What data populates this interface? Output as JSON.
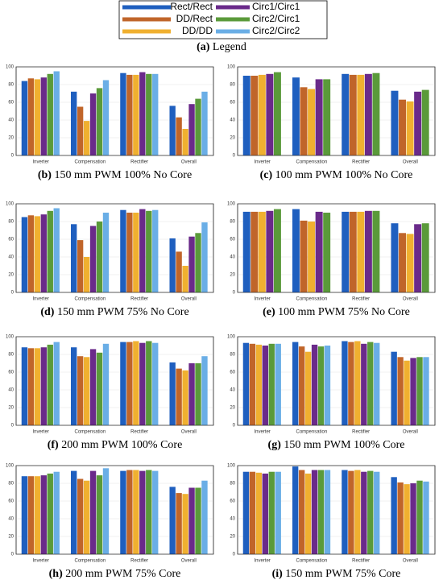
{
  "legend": {
    "caption": {
      "label": "(a)",
      "text": "Legend"
    },
    "series": [
      {
        "name": "Rect/Rect",
        "color": "#1f5fbf"
      },
      {
        "name": "DD/Rect",
        "color": "#c0652a"
      },
      {
        "name": "DD/DD",
        "color": "#f0b030"
      },
      {
        "name": "Circ1/Circ1",
        "color": "#6a2a8a"
      },
      {
        "name": "Circ2/Circ1",
        "color": "#5a9a3a"
      },
      {
        "name": "Circ2/Circ2",
        "color": "#6aaee6"
      }
    ]
  },
  "chart_data": [
    {
      "type": "bar",
      "label": "(b)",
      "title": "150 mm PWM 100% No Core",
      "categories": [
        "Inverter",
        "Compensation",
        "Rectifier",
        "Overall"
      ],
      "ylim": [
        0,
        100
      ],
      "yticks": [
        0,
        20,
        40,
        60,
        80,
        100
      ],
      "grid": true,
      "series": [
        {
          "values": [
            84,
            72,
            93,
            56
          ]
        },
        {
          "values": [
            87,
            55,
            91,
            43
          ]
        },
        {
          "values": [
            86,
            39,
            91,
            30
          ]
        },
        {
          "values": [
            88,
            70,
            94,
            58
          ]
        },
        {
          "values": [
            92,
            76,
            92,
            64
          ]
        },
        {
          "values": [
            95,
            85,
            92,
            72
          ]
        }
      ]
    },
    {
      "type": "bar",
      "label": "(c)",
      "title": "100 mm PWM 100% No Core",
      "categories": [
        "Inverter",
        "Compensation",
        "Rectifier",
        "Overall"
      ],
      "ylim": [
        0,
        100
      ],
      "yticks": [
        0,
        20,
        40,
        60,
        80,
        100
      ],
      "grid": true,
      "series": [
        {
          "values": [
            90,
            88,
            92,
            73
          ]
        },
        {
          "values": [
            90,
            77,
            91,
            63
          ]
        },
        {
          "values": [
            91,
            75,
            91,
            61
          ]
        },
        {
          "values": [
            92,
            86,
            92,
            72
          ]
        },
        {
          "values": [
            94,
            86,
            93,
            74
          ]
        }
      ]
    },
    {
      "type": "bar",
      "label": "(d)",
      "title": "150 mm PWM 75% No Core",
      "categories": [
        "Inverter",
        "Compensation",
        "Rectifier",
        "Overall"
      ],
      "ylim": [
        0,
        100
      ],
      "yticks": [
        0,
        20,
        40,
        60,
        80,
        100
      ],
      "grid": true,
      "series": [
        {
          "values": [
            85,
            77,
            93,
            61
          ]
        },
        {
          "values": [
            87,
            59,
            90,
            46
          ]
        },
        {
          "values": [
            86,
            40,
            90,
            30
          ]
        },
        {
          "values": [
            88,
            75,
            94,
            63
          ]
        },
        {
          "values": [
            92,
            80,
            92,
            67
          ]
        },
        {
          "values": [
            95,
            90,
            93,
            79
          ]
        }
      ]
    },
    {
      "type": "bar",
      "label": "(e)",
      "title": "100 mm PWM 75% No Core",
      "categories": [
        "Inverter",
        "Compensation",
        "Rectifier",
        "Overall"
      ],
      "ylim": [
        0,
        100
      ],
      "yticks": [
        0,
        20,
        40,
        60,
        80,
        100
      ],
      "grid": true,
      "series": [
        {
          "values": [
            91,
            94,
            91,
            78
          ]
        },
        {
          "values": [
            91,
            81,
            91,
            67
          ]
        },
        {
          "values": [
            91,
            80,
            91,
            66
          ]
        },
        {
          "values": [
            92,
            91,
            92,
            77
          ]
        },
        {
          "values": [
            94,
            90,
            92,
            78
          ]
        }
      ]
    },
    {
      "type": "bar",
      "label": "(f)",
      "title": "200 mm PWM 100% Core",
      "categories": [
        "Inverter",
        "Compensation",
        "Rectifier",
        "Overall"
      ],
      "ylim": [
        0,
        100
      ],
      "yticks": [
        0,
        20,
        40,
        60,
        80,
        100
      ],
      "grid": true,
      "series": [
        {
          "values": [
            88,
            88,
            94,
            71
          ]
        },
        {
          "values": [
            87,
            78,
            94,
            64
          ]
        },
        {
          "values": [
            87,
            77,
            95,
            62
          ]
        },
        {
          "values": [
            88,
            86,
            93,
            70
          ]
        },
        {
          "values": [
            91,
            82,
            95,
            70
          ]
        },
        {
          "values": [
            94,
            92,
            93,
            78
          ]
        }
      ]
    },
    {
      "type": "bar",
      "label": "(g)",
      "title": "150 mm PWM 100% Core",
      "categories": [
        "Inverter",
        "Compensation",
        "Rectifier",
        "Overall"
      ],
      "ylim": [
        0,
        100
      ],
      "yticks": [
        0,
        20,
        40,
        60,
        80,
        100
      ],
      "grid": true,
      "series": [
        {
          "values": [
            93,
            94,
            95,
            83
          ]
        },
        {
          "values": [
            92,
            89,
            94,
            77
          ]
        },
        {
          "values": [
            91,
            83,
            95,
            73
          ]
        },
        {
          "values": [
            90,
            91,
            92,
            76
          ]
        },
        {
          "values": [
            92,
            89,
            94,
            77
          ]
        },
        {
          "values": [
            92,
            90,
            93,
            77
          ]
        }
      ]
    },
    {
      "type": "bar",
      "label": "(h)",
      "title": "200 mm PWM 75% Core",
      "categories": [
        "Inverter",
        "Compensation",
        "Rectifier",
        "Overall"
      ],
      "ylim": [
        0,
        100
      ],
      "yticks": [
        0,
        20,
        40,
        60,
        80,
        100
      ],
      "grid": true,
      "series": [
        {
          "values": [
            88,
            94,
            94,
            76
          ]
        },
        {
          "values": [
            88,
            85,
            95,
            69
          ]
        },
        {
          "values": [
            88,
            83,
            95,
            68
          ]
        },
        {
          "values": [
            89,
            94,
            94,
            75
          ]
        },
        {
          "values": [
            91,
            89,
            95,
            75
          ]
        },
        {
          "values": [
            93,
            97,
            94,
            83
          ]
        }
      ]
    },
    {
      "type": "bar",
      "label": "(i)",
      "title": "150 mm PWM 75% Core",
      "categories": [
        "Inverter",
        "Compensation",
        "Rectifier",
        "Overall"
      ],
      "ylim": [
        0,
        100
      ],
      "yticks": [
        0,
        20,
        40,
        60,
        80,
        100
      ],
      "grid": true,
      "series": [
        {
          "values": [
            93,
            99,
            95,
            87
          ]
        },
        {
          "values": [
            93,
            95,
            94,
            81
          ]
        },
        {
          "values": [
            92,
            91,
            95,
            79
          ]
        },
        {
          "values": [
            91,
            95,
            93,
            80
          ]
        },
        {
          "values": [
            93,
            95,
            94,
            83
          ]
        },
        {
          "values": [
            93,
            95,
            93,
            82
          ]
        }
      ]
    }
  ]
}
